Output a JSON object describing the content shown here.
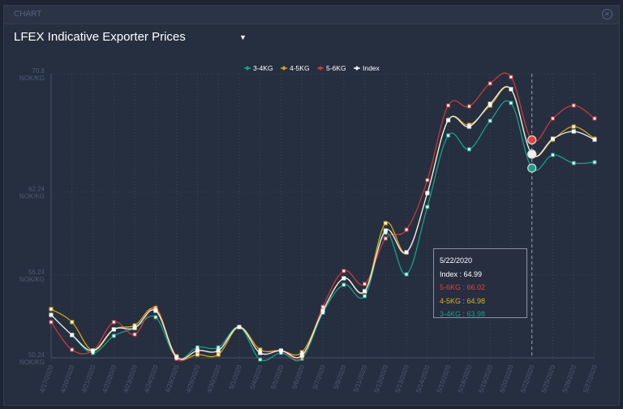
{
  "window": {
    "header": "CHART",
    "close_icon": "close-circle-icon"
  },
  "selector": {
    "value": "LFEX Indicative Exporter Prices",
    "icon": "caret-down-icon"
  },
  "colors": {
    "3-4KG": "#17a088",
    "4-5KG": "#d8a414",
    "5-6KG": "#c9383a",
    "Index": "#eeeeee"
  },
  "tooltip": {
    "date": "5/22/2020",
    "rows": [
      {
        "text": "Index : 64.99",
        "color": "#ffffff"
      },
      {
        "text": "5-6KG : 66.02",
        "color": "#e8403a"
      },
      {
        "text": "4-5KG : 64.98",
        "color": "#e0b012"
      },
      {
        "text": "3-4KG : 63.98",
        "color": "#17a088"
      }
    ]
  },
  "chart_data": {
    "type": "line",
    "title": "",
    "xlabel": "",
    "ylabel": "",
    "ylim": [
      50.24,
      70.8
    ],
    "yticks": [
      {
        "value": 70.8,
        "label": "70.8",
        "unit": "NOK/KG"
      },
      {
        "value": 62.24,
        "label": "62.24",
        "unit": "NOK/KG"
      },
      {
        "value": 56.24,
        "label": "56.24",
        "unit": "NOK/KG"
      },
      {
        "value": 50.24,
        "label": "50.24",
        "unit": "NOK/KG"
      }
    ],
    "grid": true,
    "legend": "top-center",
    "highlighted": "5/22/2020",
    "categories": [
      "4/17/2020",
      "4/20/2020",
      "4/21/2020",
      "4/22/2020",
      "4/23/2020",
      "4/24/2020",
      "4/28/2020",
      "4/29/2020",
      "4/30/2020",
      "5/1/2020",
      "5/4/2020",
      "5/5/2020",
      "5/6/2020",
      "5/7/2020",
      "5/8/2020",
      "5/11/2020",
      "5/12/2020",
      "5/13/2020",
      "5/14/2020",
      "5/15/2020",
      "5/18/2020",
      "5/19/2020",
      "5/20/2020",
      "5/22/2020",
      "5/25/2020",
      "5/26/2020",
      "5/27/2020"
    ],
    "series": [
      {
        "name": "3-4KG",
        "values": [
          53.35,
          51.88,
          50.6,
          51.83,
          52.4,
          53.18,
          50.24,
          51.0,
          51.0,
          52.47,
          50.12,
          50.6,
          50.18,
          53.5,
          55.53,
          54.71,
          59.29,
          56.29,
          61.17,
          66.34,
          65.34,
          67.4,
          68.69,
          63.98,
          64.93,
          64.34,
          64.4
        ]
      },
      {
        "name": "4-5KG",
        "values": [
          53.77,
          52.83,
          50.77,
          52.3,
          52.59,
          53.77,
          50.35,
          50.48,
          50.48,
          52.47,
          50.83,
          50.77,
          50.65,
          53.65,
          56.0,
          55.06,
          59.99,
          57.88,
          62.17,
          67.45,
          67.1,
          68.5,
          69.69,
          64.98,
          66.04,
          66.98,
          66.1
        ]
      },
      {
        "name": "5-6KG",
        "values": [
          52.83,
          50.83,
          50.77,
          52.83,
          51.94,
          53.88,
          50.18,
          50.77,
          50.77,
          52.47,
          50.83,
          50.77,
          50.3,
          53.94,
          56.53,
          55.59,
          58.88,
          59.52,
          63.11,
          68.51,
          68.45,
          70.1,
          70.57,
          66.02,
          67.57,
          68.51,
          67.57
        ]
      },
      {
        "name": "Index",
        "values": [
          53.35,
          51.9,
          50.77,
          52.3,
          52.41,
          53.65,
          50.3,
          50.77,
          50.77,
          52.47,
          50.6,
          50.77,
          50.42,
          53.65,
          56.0,
          55.06,
          59.46,
          57.88,
          62.17,
          67.45,
          66.98,
          68.63,
          69.69,
          64.99,
          66.1,
          66.63,
          66.04
        ]
      }
    ]
  }
}
